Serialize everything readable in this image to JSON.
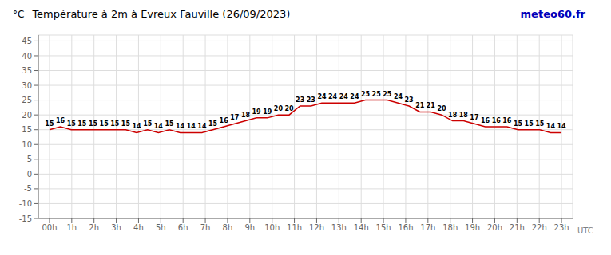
{
  "chart_data": {
    "type": "line",
    "title": "Température à 2m à Evreux Fauville (26/09/2023)",
    "ylabel": "°C",
    "annotations": [
      {
        "text": "meteo60.fr",
        "color": "#0000bb"
      },
      {
        "text": "UTC"
      }
    ],
    "x": [
      0,
      0.489362,
      0.978723,
      1.468085,
      1.957447,
      2.446809,
      2.93617,
      3.425532,
      3.914894,
      4.404255,
      4.893617,
      5.382979,
      5.87234,
      6.361702,
      6.851064,
      7.340426,
      7.829787,
      8.319149,
      8.808511,
      9.297872,
      9.787234,
      10.276596,
      10.765957,
      11.255319,
      11.744681,
      12.234043,
      12.723404,
      13.212766,
      13.702128,
      14.191489,
      14.680851,
      15.170213,
      15.659574,
      16.148936,
      16.638298,
      17.12766,
      17.617021,
      18.106383,
      18.595745,
      19.085106,
      19.574468,
      20.06383,
      20.553191,
      21.042553,
      21.531915,
      22.021277,
      22.510638,
      23
    ],
    "values": [
      15,
      16,
      15,
      15,
      15,
      15,
      15,
      15,
      14,
      15,
      14,
      15,
      14,
      14,
      14,
      15,
      16,
      17,
      18,
      19,
      19,
      20,
      20,
      23,
      23,
      24,
      24,
      24,
      24,
      25,
      25,
      25,
      24,
      23,
      21,
      21,
      20,
      18,
      18,
      17,
      16,
      16,
      16,
      15,
      15,
      15,
      14,
      14
    ],
    "color": "#cc0000",
    "xlim": [
      -0.5,
      23.5
    ],
    "xticks": [
      {
        "value": 0,
        "label": "00h"
      },
      {
        "value": 1,
        "label": "1h"
      },
      {
        "value": 2,
        "label": "2h"
      },
      {
        "value": 3,
        "label": "3h"
      },
      {
        "value": 4,
        "label": "4h"
      },
      {
        "value": 5,
        "label": "5h"
      },
      {
        "value": 6,
        "label": "6h"
      },
      {
        "value": 7,
        "label": "7h"
      },
      {
        "value": 8,
        "label": "8h"
      },
      {
        "value": 9,
        "label": "9h"
      },
      {
        "value": 10,
        "label": "10h"
      },
      {
        "value": 11,
        "label": "11h"
      },
      {
        "value": 12,
        "label": "12h"
      },
      {
        "value": 13,
        "label": "13h"
      },
      {
        "value": 14,
        "label": "14h"
      },
      {
        "value": 15,
        "label": "15h"
      },
      {
        "value": 16,
        "label": "16h"
      },
      {
        "value": 17,
        "label": "17h"
      },
      {
        "value": 18,
        "label": "18h"
      },
      {
        "value": 19,
        "label": "19h"
      },
      {
        "value": 20,
        "label": "20h"
      },
      {
        "value": 21,
        "label": "21h"
      },
      {
        "value": 22,
        "label": "22h"
      },
      {
        "value": 23,
        "label": "23h"
      }
    ],
    "ylim": [
      -15,
      47
    ],
    "yticks": [
      -15,
      -10,
      -5,
      0,
      5,
      10,
      15,
      20,
      25,
      30,
      35,
      40,
      45
    ],
    "grid": true,
    "data_labels": true
  }
}
